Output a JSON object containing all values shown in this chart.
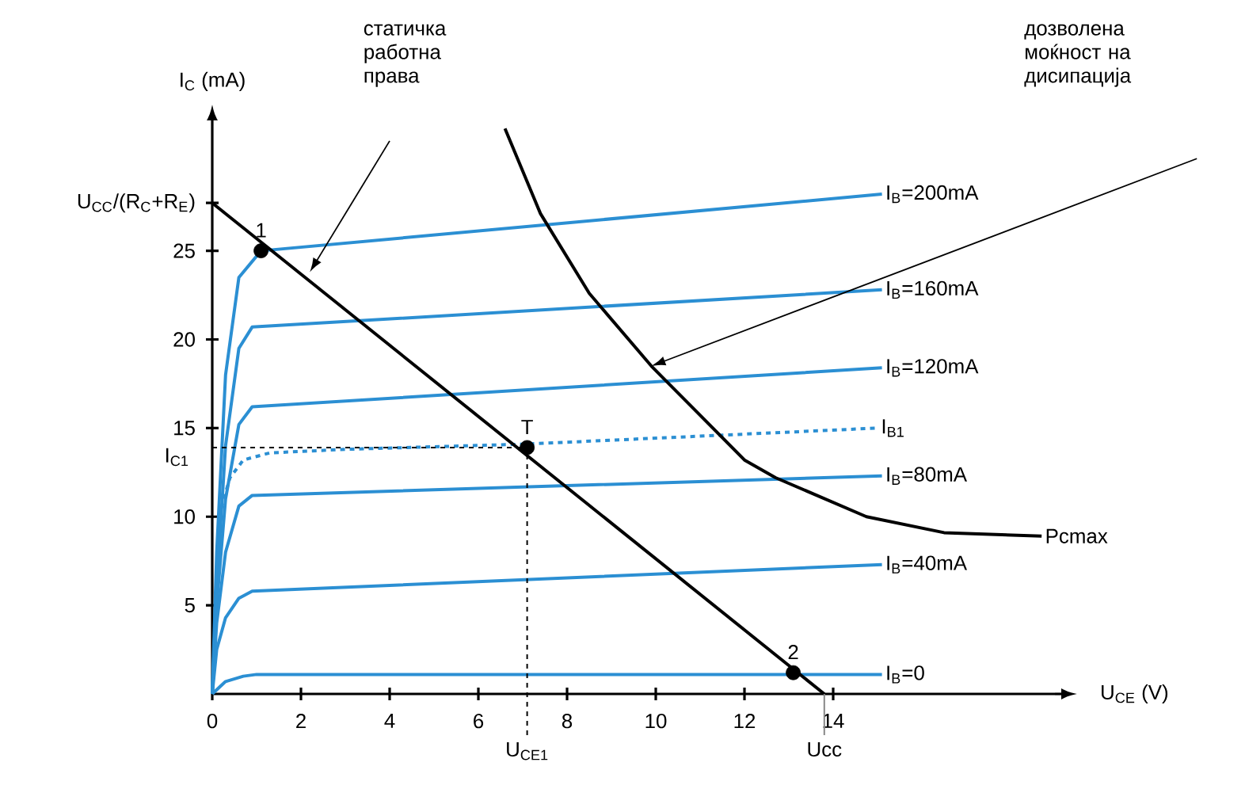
{
  "chart_data": {
    "type": "line",
    "xlabel": "U$_{CE}$  (V)",
    "ylabel": "I$_{C}$ (mA)",
    "xlim": [
      0,
      19
    ],
    "ylim": [
      0,
      32
    ],
    "xticks": [
      0,
      2,
      4,
      6,
      8,
      10,
      12,
      14
    ],
    "yticks": [
      5,
      10,
      15,
      20,
      25,
      {
        "value": 27.7,
        "label": "U$_{CC}$/(R$_{C}$+R$_{E}$)"
      }
    ],
    "series": [
      {
        "name": "I$_{B}$=200mA",
        "color": "#2b8fd3",
        "x": [
          0,
          0.1,
          0.3,
          0.6,
          1.1,
          15.1
        ],
        "values": [
          0,
          8,
          18,
          23.5,
          25,
          28.2
        ]
      },
      {
        "name": "I$_{B}$=160mA",
        "color": "#2b8fd3",
        "x": [
          0,
          0.1,
          0.3,
          0.6,
          0.9,
          15.1
        ],
        "values": [
          0,
          6,
          14,
          19.5,
          20.7,
          22.8
        ]
      },
      {
        "name": "I$_{B}$=120mA",
        "color": "#2b8fd3",
        "x": [
          0,
          0.1,
          0.3,
          0.6,
          0.9,
          15.1
        ],
        "values": [
          0,
          5,
          11,
          15.2,
          16.2,
          18.4
        ]
      },
      {
        "name": "I$_{B1}$",
        "color": "#2b8fd3",
        "line_style": "dashed",
        "x": [
          0.2,
          0.4,
          0.7,
          1.3,
          3,
          7.1,
          15
        ],
        "values": [
          10.5,
          12.2,
          13.2,
          13.6,
          13.8,
          14.1,
          15.0
        ]
      },
      {
        "name": "I$_{B}$=80mA",
        "color": "#2b8fd3",
        "x": [
          0,
          0.1,
          0.3,
          0.6,
          0.9,
          15.1
        ],
        "values": [
          0,
          4,
          8,
          10.6,
          11.2,
          12.3
        ]
      },
      {
        "name": "I$_{B}$=40mA",
        "color": "#2b8fd3",
        "x": [
          0,
          0.1,
          0.3,
          0.6,
          0.9,
          15.1
        ],
        "values": [
          0,
          2.5,
          4.3,
          5.4,
          5.8,
          7.3
        ]
      },
      {
        "name": "I$_{B}$=0",
        "color": "#2b8fd3",
        "x": [
          0,
          0.3,
          0.7,
          1.0,
          15.1
        ],
        "values": [
          0,
          0.7,
          1.0,
          1.1,
          1.1
        ]
      },
      {
        "name": "Pcmax",
        "color": "#000000",
        "x": [
          6.6,
          7.4,
          8.5,
          9.9,
          12,
          12.7,
          14.75,
          16.5,
          18.7
        ],
        "values": [
          31.9,
          27.1,
          22.6,
          18.5,
          13.2,
          12.2,
          10,
          9.1,
          8.9
        ]
      },
      {
        "color": "#000000",
        "x": [
          0,
          13.8
        ],
        "values": [
          27.7,
          0
        ]
      },
      {
        "type": "scatter",
        "marker": "circle",
        "color": "#000000",
        "x": [
          1.1,
          7.1,
          13.1
        ],
        "values": [
          25,
          13.9,
          1.2
        ]
      }
    ],
    "ref_lines": [
      {
        "axis": "y",
        "value": 13.9,
        "label": "I$_{C1}$",
        "line_style": "dashed",
        "color": "#000000"
      },
      {
        "axis": "x",
        "value": 7.1,
        "label": "U$_{CE1}$",
        "line_style": "dashed",
        "color": "#000000"
      },
      {
        "axis": "x",
        "value": 13.8,
        "label": "Ucc",
        "line_style": "solid",
        "color": "#888888"
      }
    ],
    "annotations": [
      "статичка работна права",
      "дозволена моќност на дисипација",
      {
        "text": "1",
        "x": 1.1,
        "y": 25
      },
      {
        "text": "T",
        "x": 7.1,
        "y": 13.9
      },
      {
        "text": "2",
        "x": 13.1,
        "y": 1.2
      }
    ]
  }
}
